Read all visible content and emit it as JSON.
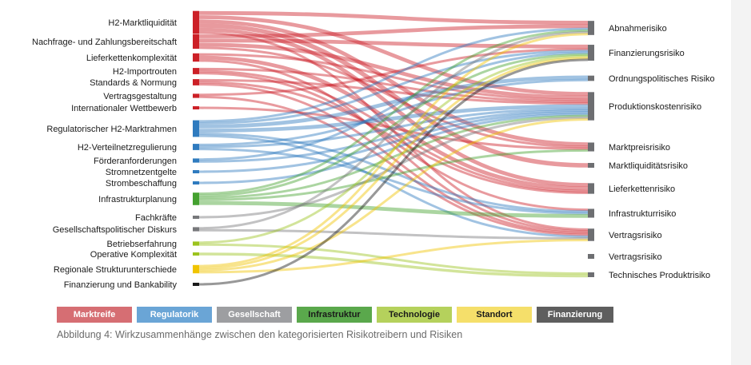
{
  "colors": {
    "marktreife": "#cc2027",
    "regulatorik": "#2f7bbf",
    "gesellschaft": "#77787b",
    "infrastruktur": "#44a12f",
    "technologie": "#9cc31e",
    "standort": "#f0c400",
    "finanzierung": "#1a1a1a"
  },
  "legend": [
    {
      "key": "marktreife",
      "label": "Marktreife",
      "color": "#d66e73"
    },
    {
      "key": "regulatorik",
      "label": "Regulatorik",
      "color": "#6aa5d6"
    },
    {
      "key": "gesellschaft",
      "label": "Gesellschaft",
      "color": "#9d9ea1"
    },
    {
      "key": "infrastruktur",
      "label": "Infrastruktur",
      "color": "#5aa84c"
    },
    {
      "key": "technologie",
      "label": "Technologie",
      "color": "#b5d15c"
    },
    {
      "key": "standort",
      "label": "Standort",
      "color": "#f5df6a"
    },
    {
      "key": "finanzierung",
      "label": "Finanzierung",
      "color": "#5e5e5e"
    }
  ],
  "left_nodes": [
    {
      "label": "H2-Marktliquidität",
      "cat": "marktreife"
    },
    {
      "label": "Nachfrage- und Zahlungsbereitschaft",
      "cat": "marktreife"
    },
    {
      "label": "Lieferkettenkomplexität",
      "cat": "marktreife"
    },
    {
      "label": "H2-Importrouten",
      "cat": "marktreife"
    },
    {
      "label": "Standards & Normung",
      "cat": "marktreife"
    },
    {
      "label": "Vertragsgestaltung",
      "cat": "marktreife"
    },
    {
      "label": "Internationaler Wettbewerb",
      "cat": "marktreife"
    },
    {
      "label": "Regulatorischer H2-Marktrahmen",
      "cat": "regulatorik"
    },
    {
      "label": "H2-Verteilnetzregulierung",
      "cat": "regulatorik"
    },
    {
      "label": "Förderanforderungen",
      "cat": "regulatorik"
    },
    {
      "label": "Stromnetzentgelte",
      "cat": "regulatorik"
    },
    {
      "label": "Strombeschaffung",
      "cat": "regulatorik"
    },
    {
      "label": "Infrastrukturplanung",
      "cat": "infrastruktur"
    },
    {
      "label": "Fachkräfte",
      "cat": "gesellschaft"
    },
    {
      "label": "Gesellschaftspolitischer Diskurs",
      "cat": "gesellschaft"
    },
    {
      "label": "Betriebserfahrung",
      "cat": "technologie"
    },
    {
      "label": "Operative Komplexität",
      "cat": "technologie"
    },
    {
      "label": "Regionale Strukturunterschiede",
      "cat": "standort"
    },
    {
      "label": "Finanzierung und Bankability",
      "cat": "finanzierung"
    }
  ],
  "right_nodes": [
    {
      "label": "Abnahmerisiko"
    },
    {
      "label": "Finanzierungsrisiko"
    },
    {
      "label": "Ordnungspolitisches Risiko"
    },
    {
      "label": "Produktionskostenrisiko"
    },
    {
      "label": "Marktpreisrisiko"
    },
    {
      "label": "Marktliquiditätsrisiko"
    },
    {
      "label": "Lieferkettenrisiko"
    },
    {
      "label": "Infrastrukturrisiko"
    },
    {
      "label": "Vertragsrisiko"
    },
    {
      "label": "Vertragsrisiko"
    },
    {
      "label": "Technisches Produktrisiko"
    }
  ],
  "links": [
    [
      0,
      0,
      2
    ],
    [
      0,
      3,
      2
    ],
    [
      0,
      4,
      2
    ],
    [
      0,
      5,
      2
    ],
    [
      0,
      6,
      2
    ],
    [
      0,
      8,
      1
    ],
    [
      1,
      0,
      2
    ],
    [
      1,
      1,
      2
    ],
    [
      1,
      3,
      2
    ],
    [
      1,
      4,
      1
    ],
    [
      2,
      3,
      1
    ],
    [
      2,
      6,
      2
    ],
    [
      2,
      8,
      1
    ],
    [
      3,
      3,
      1
    ],
    [
      3,
      6,
      1
    ],
    [
      3,
      7,
      1
    ],
    [
      4,
      3,
      1
    ],
    [
      4,
      6,
      1
    ],
    [
      4,
      8,
      1
    ],
    [
      5,
      1,
      1
    ],
    [
      5,
      8,
      1
    ],
    [
      6,
      4,
      1
    ],
    [
      7,
      0,
      1
    ],
    [
      7,
      1,
      1
    ],
    [
      7,
      2,
      2
    ],
    [
      7,
      3,
      2
    ],
    [
      7,
      7,
      1
    ],
    [
      7,
      8,
      1
    ],
    [
      8,
      2,
      1
    ],
    [
      8,
      3,
      1
    ],
    [
      8,
      7,
      1
    ],
    [
      9,
      1,
      1
    ],
    [
      9,
      3,
      1
    ],
    [
      10,
      3,
      1
    ],
    [
      11,
      3,
      1
    ],
    [
      12,
      0,
      1
    ],
    [
      12,
      1,
      1
    ],
    [
      12,
      3,
      1
    ],
    [
      12,
      4,
      1
    ],
    [
      12,
      7,
      2
    ],
    [
      13,
      3,
      1
    ],
    [
      14,
      0,
      1
    ],
    [
      14,
      8,
      1
    ],
    [
      15,
      1,
      1
    ],
    [
      15,
      10,
      1
    ],
    [
      16,
      10,
      1
    ],
    [
      17,
      0,
      1
    ],
    [
      17,
      1,
      1
    ],
    [
      17,
      3,
      1
    ],
    [
      17,
      8,
      1
    ],
    [
      18,
      1,
      1
    ]
  ],
  "caption": "Abbildung 4: Wirkzusammenhänge zwischen den kategorisierten Risikotreibern und Risiken"
}
